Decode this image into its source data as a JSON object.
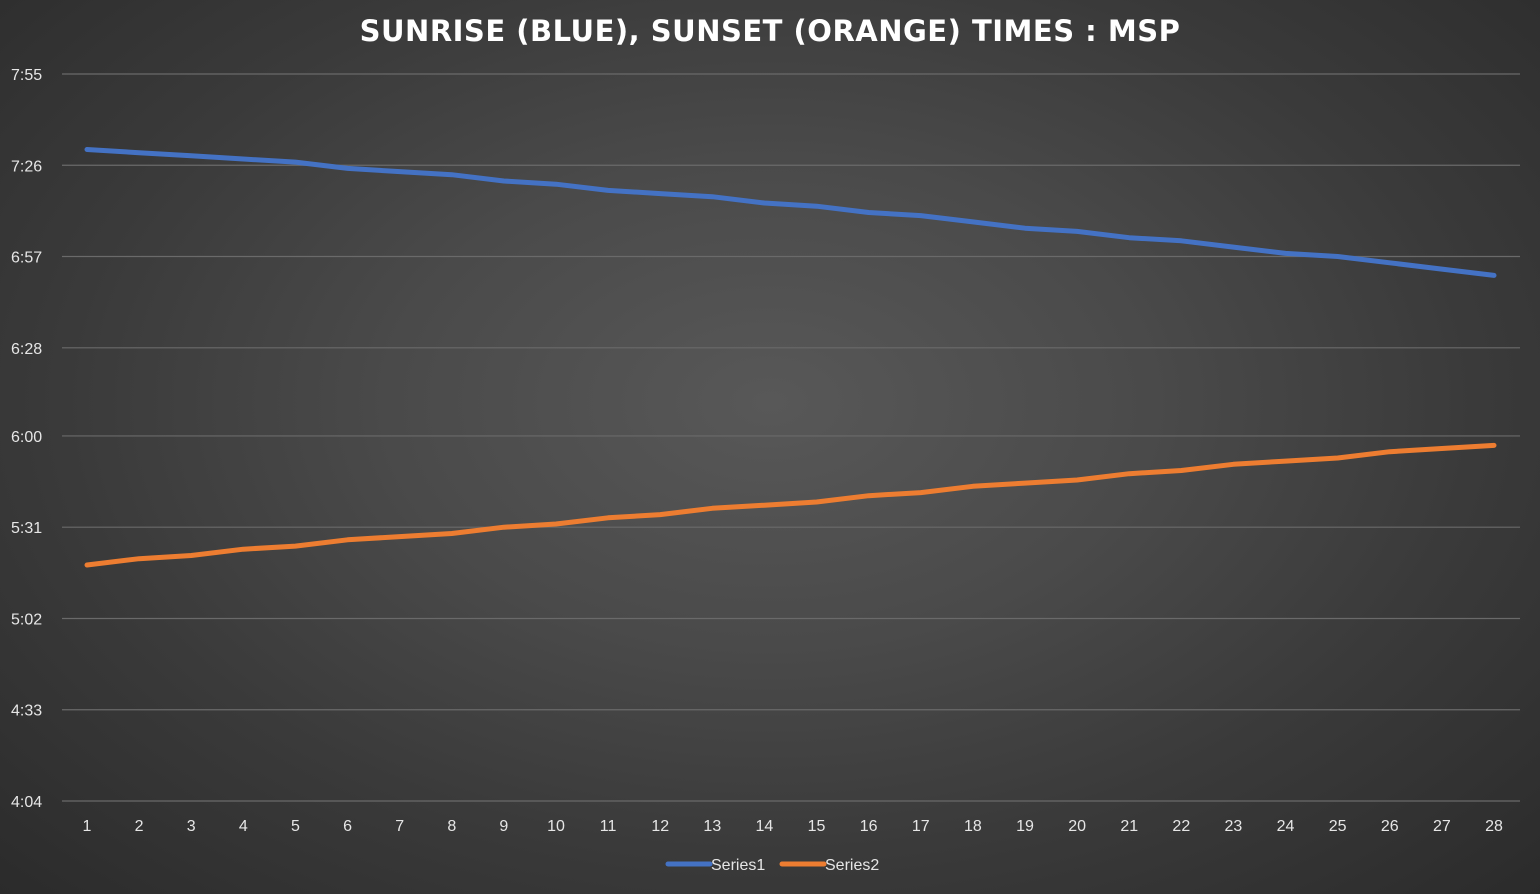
{
  "chart_data": {
    "type": "line",
    "title": "SUNRISE (BLUE), SUNSET (ORANGE) TIMES : MSP",
    "xlabel": "",
    "ylabel": "",
    "x": [
      1,
      2,
      3,
      4,
      5,
      6,
      7,
      8,
      9,
      10,
      11,
      12,
      13,
      14,
      15,
      16,
      17,
      18,
      19,
      20,
      21,
      22,
      23,
      24,
      25,
      26,
      27,
      28
    ],
    "x_tick_labels": [
      "1",
      "2",
      "3",
      "4",
      "5",
      "6",
      "7",
      "8",
      "9",
      "10",
      "11",
      "12",
      "13",
      "14",
      "15",
      "16",
      "17",
      "18",
      "19",
      "20",
      "21",
      "22",
      "23",
      "24",
      "25",
      "26",
      "27",
      "28"
    ],
    "y_tick_labels": [
      "7:55",
      "7:26",
      "6:57",
      "6:28",
      "6:00",
      "5:31",
      "5:02",
      "4:33",
      "4:04"
    ],
    "ylim": [
      "4:04",
      "7:55"
    ],
    "grid": true,
    "legend_position": "bottom",
    "series": [
      {
        "name": "Series1",
        "color": "#4472c4",
        "values": [
          "7:31",
          "7:30",
          "7:29",
          "7:28",
          "7:27",
          "7:25",
          "7:24",
          "7:23",
          "7:21",
          "7:20",
          "7:18",
          "7:17",
          "7:16",
          "7:14",
          "7:13",
          "7:11",
          "7:10",
          "7:08",
          "7:06",
          "7:05",
          "7:03",
          "7:02",
          "7:00",
          "6:58",
          "6:57",
          "6:55",
          "6:53",
          "6:51"
        ]
      },
      {
        "name": "Series2",
        "color": "#ed7d31",
        "values": [
          "5:19",
          "5:21",
          "5:22",
          "5:24",
          "5:25",
          "5:27",
          "5:28",
          "5:29",
          "5:31",
          "5:32",
          "5:34",
          "5:35",
          "5:37",
          "5:38",
          "5:39",
          "5:41",
          "5:42",
          "5:44",
          "5:45",
          "5:46",
          "5:48",
          "5:49",
          "5:51",
          "5:52",
          "5:53",
          "5:55",
          "5:56",
          "5:57"
        ]
      }
    ]
  }
}
